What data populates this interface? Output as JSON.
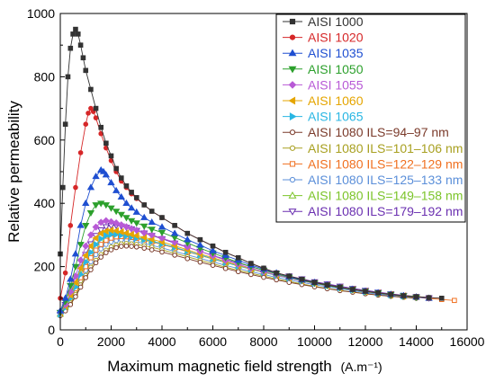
{
  "chart_data": {
    "type": "line",
    "title": "",
    "xlabel": "Maximum magnetic field strength",
    "xlabel_unit": "(A.m⁻¹)",
    "ylabel": "Relative permeability",
    "xlim": [
      0,
      16000
    ],
    "ylim": [
      0,
      1000
    ],
    "xticks": [
      "0",
      "2000",
      "4000",
      "6000",
      "8000",
      "10000",
      "12000",
      "14000",
      "16000"
    ],
    "yticks": [
      "0",
      "200",
      "400",
      "600",
      "800",
      "1000"
    ],
    "grid": false,
    "legend_position": "top-right",
    "series": [
      {
        "name": "AISI 1000",
        "color": "#333333",
        "marker": "square-filled",
        "x": [
          0,
          100,
          200,
          300,
          400,
          500,
          600,
          700,
          800,
          900,
          1000,
          1200,
          1400,
          1600,
          1800,
          2000,
          2200,
          2400,
          2600,
          2800,
          3000,
          3300,
          3600,
          4000,
          4500,
          5000,
          5500,
          6000,
          6500,
          7000,
          7500,
          8000,
          8500,
          9000,
          9500,
          10000,
          10500,
          11000,
          11500,
          12000,
          12500,
          13000,
          13500,
          14000,
          14500,
          15000
        ],
        "y": [
          240,
          450,
          650,
          800,
          890,
          935,
          950,
          935,
          900,
          860,
          820,
          760,
          700,
          640,
          590,
          550,
          510,
          480,
          455,
          435,
          418,
          395,
          375,
          355,
          330,
          305,
          285,
          265,
          245,
          228,
          210,
          195,
          180,
          170,
          160,
          150,
          142,
          135,
          128,
          122,
          117,
          112,
          108,
          105,
          102,
          100
        ]
      },
      {
        "name": "AISI 1020",
        "color": "#d62728",
        "marker": "circle-filled",
        "x": [
          0,
          200,
          400,
          600,
          800,
          1000,
          1100,
          1200,
          1300,
          1400,
          1600,
          1800,
          2000,
          2200,
          2400,
          2600,
          2800,
          3000,
          3300,
          3600,
          4000,
          4500,
          5000,
          5500,
          6000,
          6500,
          7000,
          7500,
          8000,
          8500,
          9000,
          9500,
          10000,
          10500,
          11000,
          11500,
          12000,
          12500,
          13000,
          13500,
          14000,
          14500,
          15000
        ],
        "y": [
          100,
          180,
          330,
          450,
          560,
          650,
          685,
          700,
          690,
          670,
          620,
          575,
          535,
          500,
          470,
          450,
          430,
          415,
          395,
          375,
          355,
          330,
          305,
          285,
          265,
          245,
          228,
          210,
          195,
          180,
          170,
          160,
          150,
          142,
          135,
          128,
          122,
          117,
          112,
          108,
          105,
          102,
          100
        ]
      },
      {
        "name": "AISI 1035",
        "color": "#1f4fd1",
        "marker": "triangle-up-filled",
        "x": [
          0,
          200,
          400,
          600,
          800,
          1000,
          1200,
          1400,
          1600,
          1700,
          1800,
          2000,
          2200,
          2400,
          2600,
          2800,
          3000,
          3300,
          3600,
          4000,
          4500,
          5000,
          5500,
          6000,
          6500,
          7000,
          7500,
          8000,
          8500,
          9000,
          9500,
          10000,
          10500,
          11000,
          11500,
          12000,
          12500,
          13000,
          13500,
          14000,
          14500
        ],
        "y": [
          60,
          100,
          160,
          240,
          330,
          400,
          450,
          485,
          505,
          500,
          490,
          465,
          440,
          420,
          400,
          385,
          372,
          355,
          340,
          325,
          305,
          285,
          268,
          250,
          235,
          220,
          205,
          192,
          180,
          168,
          158,
          150,
          142,
          135,
          128,
          122,
          117,
          112,
          108,
          104,
          100
        ]
      },
      {
        "name": "AISI 1050",
        "color": "#2ca02c",
        "marker": "triangle-down-filled",
        "x": [
          0,
          200,
          400,
          600,
          800,
          1000,
          1200,
          1400,
          1600,
          1800,
          2000,
          2200,
          2400,
          2600,
          2800,
          3000,
          3300,
          3600,
          4000,
          4500,
          5000,
          5500,
          6000,
          6500,
          7000,
          7500,
          8000,
          8500,
          9000,
          9500,
          10000,
          10500,
          11000,
          11500,
          12000,
          12500,
          13000,
          13500,
          14000
        ],
        "y": [
          55,
          90,
          140,
          200,
          270,
          330,
          370,
          395,
          400,
          395,
          385,
          375,
          365,
          355,
          345,
          338,
          328,
          318,
          308,
          292,
          275,
          258,
          243,
          228,
          213,
          200,
          188,
          177,
          166,
          156,
          148,
          140,
          133,
          127,
          121,
          116,
          111,
          107,
          103
        ]
      },
      {
        "name": "AISI 1055",
        "color": "#b85ad6",
        "marker": "diamond-filled",
        "x": [
          0,
          200,
          400,
          600,
          800,
          1000,
          1200,
          1400,
          1600,
          1800,
          2000,
          2200,
          2400,
          2600,
          2800,
          3000,
          3300,
          3600,
          4000,
          4500,
          5000,
          5500,
          6000,
          6500,
          7000,
          7500,
          8000,
          8500,
          9000,
          9500,
          10000,
          10500,
          11000,
          11500,
          12000,
          12500,
          13000,
          13500
        ],
        "y": [
          55,
          80,
          120,
          170,
          220,
          265,
          300,
          325,
          340,
          345,
          342,
          338,
          332,
          326,
          320,
          315,
          307,
          300,
          290,
          277,
          262,
          248,
          234,
          220,
          207,
          195,
          184,
          174,
          164,
          155,
          147,
          140,
          133,
          127,
          121,
          116,
          111,
          107
        ]
      },
      {
        "name": "AISI 1060",
        "color": "#e5a500",
        "marker": "triangle-left-filled",
        "x": [
          0,
          200,
          400,
          600,
          800,
          1000,
          1200,
          1400,
          1600,
          1800,
          2000,
          2200,
          2400,
          2600,
          2800,
          3000,
          3300,
          3600,
          4000,
          4500,
          5000,
          5500,
          6000,
          6500,
          7000,
          7500,
          8000,
          8500,
          9000,
          9500,
          10000,
          10500,
          11000,
          11500,
          12000,
          12500,
          13000,
          13500
        ],
        "y": [
          55,
          75,
          110,
          150,
          195,
          235,
          265,
          290,
          305,
          312,
          315,
          313,
          310,
          306,
          302,
          298,
          292,
          286,
          278,
          266,
          253,
          240,
          228,
          216,
          204,
          193,
          183,
          173,
          164,
          155,
          147,
          140,
          133,
          127,
          121,
          116,
          111,
          107
        ]
      },
      {
        "name": "AISI 1065",
        "color": "#29b6e3",
        "marker": "triangle-right-filled",
        "x": [
          0,
          200,
          400,
          600,
          800,
          1000,
          1200,
          1400,
          1600,
          1800,
          2000,
          2200,
          2400,
          2600,
          2800,
          3000,
          3300,
          3600,
          4000,
          4500,
          5000,
          5500,
          6000,
          6500,
          7000,
          7500,
          8000,
          8500,
          9000,
          9500,
          10000,
          10500,
          11000,
          11500,
          12000,
          12500,
          13000,
          13500
        ],
        "y": [
          50,
          70,
          100,
          135,
          175,
          215,
          245,
          270,
          288,
          298,
          302,
          302,
          300,
          297,
          294,
          290,
          285,
          280,
          272,
          261,
          249,
          237,
          225,
          213,
          202,
          192,
          182,
          172,
          163,
          155,
          147,
          140,
          133,
          127,
          121,
          116,
          111,
          107
        ]
      },
      {
        "name": "AISI 1080 ILS=94–97 nm",
        "color": "#7a3a2a",
        "marker": "circle-open",
        "x": [
          0,
          200,
          400,
          600,
          800,
          1000,
          1200,
          1400,
          1600,
          1800,
          2000,
          2200,
          2400,
          2600,
          2800,
          3000,
          3300,
          3600,
          4000,
          4500,
          5000,
          5500,
          6000,
          6500,
          7000,
          7500,
          8000,
          8500,
          9000,
          9500,
          10000,
          10500,
          11000,
          11500,
          12000,
          12500,
          13000,
          13500,
          14000
        ],
        "y": [
          45,
          60,
          80,
          105,
          135,
          165,
          190,
          212,
          230,
          244,
          253,
          260,
          264,
          265,
          264,
          262,
          258,
          253,
          246,
          236,
          225,
          214,
          204,
          194,
          184,
          175,
          166,
          158,
          150,
          143,
          136,
          130,
          124,
          119,
          114,
          110,
          106,
          103,
          100
        ]
      },
      {
        "name": "AISI 1080 ILS=101–106 nm",
        "color": "#a8a020",
        "marker": "circle-open",
        "x": [
          0,
          200,
          400,
          600,
          800,
          1000,
          1200,
          1400,
          1600,
          1800,
          2000,
          2200,
          2400,
          2600,
          2800,
          3000,
          3300,
          3600,
          4000,
          4500,
          5000,
          5500,
          6000,
          6500,
          7000,
          7500,
          8000,
          8500,
          9000,
          9500,
          10000,
          10500,
          11000,
          11500,
          12000,
          12500,
          13000,
          13500,
          14000
        ],
        "y": [
          45,
          62,
          85,
          112,
          142,
          172,
          198,
          220,
          238,
          252,
          262,
          268,
          272,
          273,
          272,
          270,
          266,
          261,
          253,
          242,
          231,
          220,
          209,
          198,
          188,
          179,
          170,
          161,
          153,
          145,
          138,
          131,
          125,
          120,
          115,
          110,
          106,
          103,
          100
        ]
      },
      {
        "name": "AISI 1080 ILS=122–129 nm",
        "color": "#f07020",
        "marker": "square-open",
        "x": [
          0,
          200,
          400,
          600,
          800,
          1000,
          1200,
          1400,
          1600,
          1800,
          2000,
          2200,
          2400,
          2600,
          2800,
          3000,
          3300,
          3600,
          4000,
          4500,
          5000,
          5500,
          6000,
          6500,
          7000,
          7500,
          8000,
          8500,
          9000,
          9500,
          10000,
          10500,
          11000,
          11500,
          12000,
          12500,
          13000,
          13500,
          14000,
          14500,
          15000,
          15500
        ],
        "y": [
          50,
          70,
          98,
          130,
          165,
          200,
          228,
          252,
          270,
          283,
          290,
          294,
          295,
          294,
          292,
          289,
          284,
          278,
          270,
          259,
          247,
          236,
          224,
          213,
          202,
          192,
          182,
          173,
          164,
          156,
          148,
          141,
          134,
          128,
          122,
          117,
          112,
          107,
          103,
          99,
          96,
          93
        ]
      },
      {
        "name": "AISI 1080 ILS=125–133 nm",
        "color": "#5b8fd9",
        "marker": "circle-open",
        "x": [
          0,
          200,
          400,
          600,
          800,
          1000,
          1200,
          1400,
          1600,
          1800,
          2000,
          2200,
          2400,
          2600,
          2800,
          3000,
          3300,
          3600,
          4000,
          4500,
          5000,
          5500,
          6000,
          6500,
          7000,
          7500,
          8000,
          8500,
          9000,
          9500,
          10000,
          10500,
          11000,
          11500,
          12000,
          12500,
          13000,
          13500,
          14000
        ],
        "y": [
          48,
          66,
          92,
          122,
          155,
          188,
          215,
          238,
          256,
          270,
          278,
          282,
          284,
          283,
          281,
          278,
          273,
          267,
          259,
          248,
          237,
          226,
          215,
          204,
          194,
          184,
          175,
          166,
          158,
          150,
          143,
          136,
          130,
          124,
          118,
          113,
          108,
          104,
          100
        ]
      },
      {
        "name": "AISI 1080 ILS=149–158 nm",
        "color": "#7cc42a",
        "marker": "triangle-up-open",
        "x": [
          0,
          200,
          400,
          600,
          800,
          1000,
          1200,
          1400,
          1600,
          1800,
          2000,
          2200,
          2400,
          2600,
          2800,
          3000,
          3300,
          3600,
          4000,
          4500,
          5000,
          5500,
          6000,
          6500,
          7000,
          7500,
          8000,
          8500,
          9000,
          9500,
          10000,
          10500,
          11000,
          11500,
          12000,
          12500,
          13000,
          13500,
          14000
        ],
        "y": [
          50,
          72,
          102,
          138,
          175,
          210,
          240,
          264,
          282,
          294,
          300,
          302,
          302,
          300,
          297,
          293,
          287,
          281,
          272,
          260,
          248,
          236,
          224,
          213,
          202,
          192,
          182,
          173,
          164,
          156,
          148,
          141,
          134,
          128,
          122,
          117,
          112,
          107,
          103
        ]
      },
      {
        "name": "AISI 1080 ILS=179–192 nm",
        "color": "#6a2fb0",
        "marker": "triangle-down-open",
        "x": [
          0,
          200,
          400,
          600,
          800,
          1000,
          1200,
          1400,
          1600,
          1800,
          2000,
          2200,
          2400,
          2600,
          2800,
          3000,
          3300,
          3600,
          4000,
          4500,
          5000,
          5500,
          6000,
          6500,
          7000,
          7500,
          8000,
          8500,
          9000,
          9500,
          10000,
          10500,
          11000,
          11500,
          12000,
          12500,
          13000,
          13500,
          14000,
          14500
        ],
        "y": [
          55,
          80,
          115,
          155,
          198,
          238,
          272,
          298,
          316,
          326,
          330,
          330,
          328,
          324,
          319,
          314,
          306,
          298,
          288,
          274,
          261,
          248,
          235,
          223,
          211,
          200,
          189,
          179,
          170,
          161,
          152,
          145,
          138,
          131,
          125,
          119,
          114,
          109,
          105,
          101
        ]
      }
    ]
  }
}
